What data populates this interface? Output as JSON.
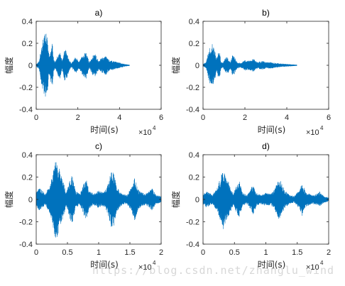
{
  "watermark": "https://blog.csdn.net/zhanglu_wind",
  "colors": {
    "signal": "#0072BD",
    "axes": "#262626",
    "background": "#ffffff"
  },
  "chart_data": [
    {
      "type": "line",
      "title": "a)",
      "xlabel": "时间(s)",
      "ylabel": "幅度",
      "xlim": [
        0,
        60000
      ],
      "ylim": [
        -0.4,
        0.4
      ],
      "xticks": [
        0,
        2,
        4,
        6
      ],
      "yticks": [
        -0.4,
        -0.2,
        0,
        0.2,
        0.4
      ],
      "x_exponent_label": "×10",
      "x_exponent": "4",
      "grid": false,
      "legend": "none",
      "signal_end_x": 44800,
      "envelope": [
        {
          "x": 0,
          "a": 0.01
        },
        {
          "x": 1500,
          "a": 0.04
        },
        {
          "x": 2500,
          "a": 0.18
        },
        {
          "x": 3200,
          "a": 0.24
        },
        {
          "x": 4000,
          "a": 0.28
        },
        {
          "x": 4800,
          "a": 0.29
        },
        {
          "x": 5600,
          "a": 0.22
        },
        {
          "x": 6200,
          "a": 0.08
        },
        {
          "x": 7000,
          "a": 0.15
        },
        {
          "x": 7800,
          "a": 0.2
        },
        {
          "x": 8400,
          "a": 0.06
        },
        {
          "x": 9200,
          "a": 0.03
        },
        {
          "x": 10500,
          "a": 0.1
        },
        {
          "x": 11500,
          "a": 0.12
        },
        {
          "x": 12500,
          "a": 0.04
        },
        {
          "x": 13500,
          "a": 0.15
        },
        {
          "x": 14500,
          "a": 0.14
        },
        {
          "x": 15800,
          "a": 0.05
        },
        {
          "x": 17000,
          "a": 0.02
        },
        {
          "x": 19000,
          "a": 0.08
        },
        {
          "x": 20500,
          "a": 0.03
        },
        {
          "x": 22500,
          "a": 0.1
        },
        {
          "x": 24000,
          "a": 0.12
        },
        {
          "x": 25500,
          "a": 0.03
        },
        {
          "x": 27000,
          "a": 0.09
        },
        {
          "x": 28500,
          "a": 0.1
        },
        {
          "x": 30000,
          "a": 0.04
        },
        {
          "x": 31500,
          "a": 0.07
        },
        {
          "x": 33500,
          "a": 0.09
        },
        {
          "x": 35000,
          "a": 0.05
        },
        {
          "x": 37000,
          "a": 0.04
        },
        {
          "x": 39000,
          "a": 0.03
        },
        {
          "x": 41000,
          "a": 0.02
        },
        {
          "x": 43000,
          "a": 0.01
        },
        {
          "x": 44800,
          "a": 0.005
        }
      ]
    },
    {
      "type": "line",
      "title": "b)",
      "xlabel": "时间(s)",
      "ylabel": "幅度",
      "xlim": [
        0,
        60000
      ],
      "ylim": [
        -0.4,
        0.4
      ],
      "xticks": [
        0,
        2,
        4,
        6
      ],
      "yticks": [
        -0.4,
        -0.2,
        0,
        0.2,
        0.4
      ],
      "x_exponent_label": "×10",
      "x_exponent": "4",
      "grid": false,
      "legend": "none",
      "signal_end_x": 44800,
      "envelope": [
        {
          "x": 0,
          "a": 0.01
        },
        {
          "x": 1500,
          "a": 0.03
        },
        {
          "x": 2500,
          "a": 0.12
        },
        {
          "x": 3400,
          "a": 0.17
        },
        {
          "x": 4200,
          "a": 0.2
        },
        {
          "x": 5000,
          "a": 0.19
        },
        {
          "x": 5800,
          "a": 0.13
        },
        {
          "x": 6400,
          "a": 0.06
        },
        {
          "x": 7200,
          "a": 0.11
        },
        {
          "x": 7800,
          "a": 0.13
        },
        {
          "x": 8600,
          "a": 0.04
        },
        {
          "x": 9500,
          "a": 0.02
        },
        {
          "x": 10800,
          "a": 0.07
        },
        {
          "x": 11800,
          "a": 0.08
        },
        {
          "x": 13000,
          "a": 0.03
        },
        {
          "x": 14000,
          "a": 0.09
        },
        {
          "x": 15000,
          "a": 0.08
        },
        {
          "x": 16200,
          "a": 0.03
        },
        {
          "x": 18000,
          "a": 0.02
        },
        {
          "x": 20000,
          "a": 0.05
        },
        {
          "x": 22000,
          "a": 0.04
        },
        {
          "x": 24000,
          "a": 0.06
        },
        {
          "x": 26000,
          "a": 0.03
        },
        {
          "x": 28000,
          "a": 0.04
        },
        {
          "x": 30000,
          "a": 0.03
        },
        {
          "x": 32500,
          "a": 0.03
        },
        {
          "x": 35000,
          "a": 0.02
        },
        {
          "x": 38000,
          "a": 0.015
        },
        {
          "x": 41000,
          "a": 0.01
        },
        {
          "x": 44800,
          "a": 0.005
        }
      ]
    },
    {
      "type": "line",
      "title": "c)",
      "xlabel": "时间(s)",
      "ylabel": "幅度",
      "xlim": [
        0,
        20000
      ],
      "ylim": [
        -0.4,
        0.4
      ],
      "xticks": [
        0,
        0.5,
        1,
        1.5,
        2
      ],
      "yticks": [
        -0.4,
        -0.2,
        0,
        0.2,
        0.4
      ],
      "x_exponent_label": "×10",
      "x_exponent": "4",
      "grid": false,
      "legend": "none",
      "signal_end_x": 20000,
      "envelope": [
        {
          "x": 0,
          "a": 0.07
        },
        {
          "x": 500,
          "a": 0.1
        },
        {
          "x": 1000,
          "a": 0.08
        },
        {
          "x": 1500,
          "a": 0.05
        },
        {
          "x": 2200,
          "a": 0.14
        },
        {
          "x": 2800,
          "a": 0.28
        },
        {
          "x": 3200,
          "a": 0.38
        },
        {
          "x": 3600,
          "a": 0.3
        },
        {
          "x": 4200,
          "a": 0.2
        },
        {
          "x": 4800,
          "a": 0.06
        },
        {
          "x": 5400,
          "a": 0.18
        },
        {
          "x": 5800,
          "a": 0.22
        },
        {
          "x": 6300,
          "a": 0.08
        },
        {
          "x": 7000,
          "a": 0.05
        },
        {
          "x": 7600,
          "a": 0.14
        },
        {
          "x": 8000,
          "a": 0.19
        },
        {
          "x": 8500,
          "a": 0.08
        },
        {
          "x": 9200,
          "a": 0.05
        },
        {
          "x": 10000,
          "a": 0.08
        },
        {
          "x": 10800,
          "a": 0.06
        },
        {
          "x": 11400,
          "a": 0.12
        },
        {
          "x": 12000,
          "a": 0.25
        },
        {
          "x": 12400,
          "a": 0.24
        },
        {
          "x": 13000,
          "a": 0.1
        },
        {
          "x": 13800,
          "a": 0.05
        },
        {
          "x": 14500,
          "a": 0.04
        },
        {
          "x": 15300,
          "a": 0.11
        },
        {
          "x": 15800,
          "a": 0.2
        },
        {
          "x": 16300,
          "a": 0.09
        },
        {
          "x": 17000,
          "a": 0.06
        },
        {
          "x": 17500,
          "a": 0.05
        },
        {
          "x": 18000,
          "a": 0.07
        },
        {
          "x": 18600,
          "a": 0.1
        },
        {
          "x": 19200,
          "a": 0.04
        },
        {
          "x": 20000,
          "a": 0.03
        }
      ]
    },
    {
      "type": "line",
      "title": "d)",
      "xlabel": "时间(s)",
      "ylabel": "幅度",
      "xlim": [
        0,
        20000
      ],
      "ylim": [
        -0.4,
        0.4
      ],
      "xticks": [
        0,
        0.5,
        1,
        1.5,
        2
      ],
      "yticks": [
        -0.4,
        -0.2,
        0,
        0.2,
        0.4
      ],
      "x_exponent_label": "×10",
      "x_exponent": "4",
      "grid": false,
      "legend": "none",
      "signal_end_x": 20000,
      "envelope": [
        {
          "x": 0,
          "a": 0.05
        },
        {
          "x": 500,
          "a": 0.07
        },
        {
          "x": 1000,
          "a": 0.06
        },
        {
          "x": 1500,
          "a": 0.04
        },
        {
          "x": 2200,
          "a": 0.1
        },
        {
          "x": 2800,
          "a": 0.2
        },
        {
          "x": 3200,
          "a": 0.27
        },
        {
          "x": 3600,
          "a": 0.22
        },
        {
          "x": 4200,
          "a": 0.14
        },
        {
          "x": 4800,
          "a": 0.05
        },
        {
          "x": 5400,
          "a": 0.13
        },
        {
          "x": 5800,
          "a": 0.16
        },
        {
          "x": 6300,
          "a": 0.06
        },
        {
          "x": 7000,
          "a": 0.04
        },
        {
          "x": 7600,
          "a": 0.1
        },
        {
          "x": 8000,
          "a": 0.14
        },
        {
          "x": 8500,
          "a": 0.06
        },
        {
          "x": 9200,
          "a": 0.04
        },
        {
          "x": 10000,
          "a": 0.06
        },
        {
          "x": 10800,
          "a": 0.05
        },
        {
          "x": 11400,
          "a": 0.09
        },
        {
          "x": 12000,
          "a": 0.18
        },
        {
          "x": 12400,
          "a": 0.17
        },
        {
          "x": 13000,
          "a": 0.08
        },
        {
          "x": 13800,
          "a": 0.04
        },
        {
          "x": 14500,
          "a": 0.03
        },
        {
          "x": 15300,
          "a": 0.08
        },
        {
          "x": 15800,
          "a": 0.15
        },
        {
          "x": 16300,
          "a": 0.07
        },
        {
          "x": 17000,
          "a": 0.05
        },
        {
          "x": 17500,
          "a": 0.04
        },
        {
          "x": 18000,
          "a": 0.05
        },
        {
          "x": 18600,
          "a": 0.07
        },
        {
          "x": 19200,
          "a": 0.03
        },
        {
          "x": 20000,
          "a": 0.02
        }
      ]
    }
  ]
}
